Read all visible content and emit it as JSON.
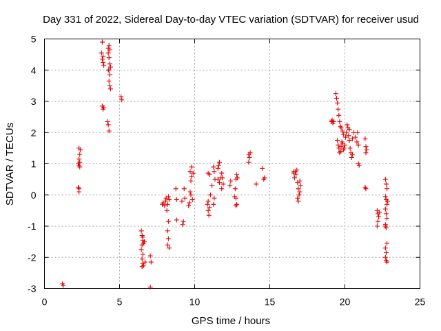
{
  "chart_data": {
    "type": "scatter",
    "title": "Day 331 of 2022, Sidereal Day-to-day VTEC variation (SDTVAR) for receiver usud",
    "xlabel": "GPS time / hours",
    "ylabel": "SDTVAR / TECUs",
    "xlim": [
      0,
      25
    ],
    "ylim": [
      -3,
      5
    ],
    "xticks": [
      "0",
      "5",
      "10",
      "15",
      "20",
      "25"
    ],
    "yticks": [
      "-3",
      "-2",
      "-1",
      "0",
      "1",
      "2",
      "3",
      "4",
      "5"
    ],
    "grid": true,
    "marker": "+",
    "series": [
      {
        "name": "SDTVAR",
        "color": "#e00000",
        "points": [
          [
            1.2,
            -2.85
          ],
          [
            1.25,
            -2.9
          ],
          [
            2.3,
            0.1
          ],
          [
            2.3,
            0.2
          ],
          [
            2.25,
            0.25
          ],
          [
            2.3,
            0.95
          ],
          [
            2.35,
            1.05
          ],
          [
            2.3,
            1.15
          ],
          [
            2.35,
            1.3
          ],
          [
            2.4,
            1.45
          ],
          [
            2.3,
            1.5
          ],
          [
            2.25,
            1.0
          ],
          [
            2.35,
            0.9
          ],
          [
            3.85,
            4.9
          ],
          [
            3.9,
            4.45
          ],
          [
            3.85,
            4.35
          ],
          [
            3.9,
            4.25
          ],
          [
            3.95,
            4.15
          ],
          [
            3.8,
            4.55
          ],
          [
            3.85,
            2.85
          ],
          [
            3.9,
            2.75
          ],
          [
            3.95,
            2.8
          ],
          [
            4.25,
            4.7
          ],
          [
            4.3,
            4.8
          ],
          [
            4.35,
            4.65
          ],
          [
            4.25,
            4.55
          ],
          [
            4.3,
            4.4
          ],
          [
            4.35,
            4.2
          ],
          [
            4.4,
            4.1
          ],
          [
            4.3,
            4.0
          ],
          [
            4.35,
            3.85
          ],
          [
            4.3,
            3.65
          ],
          [
            4.35,
            3.5
          ],
          [
            4.4,
            3.4
          ],
          [
            4.25,
            4.0
          ],
          [
            4.2,
            2.35
          ],
          [
            4.25,
            2.25
          ],
          [
            4.3,
            2.05
          ],
          [
            5.1,
            3.15
          ],
          [
            5.15,
            3.05
          ],
          [
            6.45,
            -1.15
          ],
          [
            6.5,
            -1.3
          ],
          [
            6.55,
            -1.45
          ],
          [
            6.5,
            -1.6
          ],
          [
            6.45,
            -1.75
          ],
          [
            6.55,
            -1.9
          ],
          [
            6.6,
            -1.55
          ],
          [
            6.5,
            -2.05
          ],
          [
            6.55,
            -2.2
          ],
          [
            6.5,
            -2.3
          ],
          [
            6.6,
            -2.25
          ],
          [
            6.7,
            -2.15
          ],
          [
            6.65,
            -1.5
          ],
          [
            6.55,
            -1.35
          ],
          [
            7.05,
            -1.95
          ],
          [
            7.1,
            -2.15
          ],
          [
            7.05,
            -2.95
          ],
          [
            7.85,
            -0.3
          ],
          [
            7.9,
            -0.25
          ],
          [
            8.0,
            -0.35
          ],
          [
            8.05,
            -0.2
          ],
          [
            8.1,
            -0.1
          ],
          [
            8.2,
            -0.3
          ],
          [
            8.15,
            -0.5
          ],
          [
            8.25,
            -0.85
          ],
          [
            8.2,
            -1.15
          ],
          [
            8.25,
            -1.4
          ],
          [
            8.2,
            -1.6
          ],
          [
            8.3,
            -1.7
          ],
          [
            8.25,
            -0.05
          ],
          [
            8.3,
            -0.15
          ],
          [
            8.75,
            0.2
          ],
          [
            8.8,
            -0.15
          ],
          [
            8.8,
            -0.8
          ],
          [
            9.15,
            -0.2
          ],
          [
            9.25,
            -0.85
          ],
          [
            9.2,
            -0.95
          ],
          [
            9.3,
            0.2
          ],
          [
            9.35,
            -0.1
          ],
          [
            9.6,
            -0.35
          ],
          [
            9.65,
            -0.25
          ],
          [
            9.7,
            0.1
          ],
          [
            9.75,
            0.45
          ],
          [
            9.8,
            0.6
          ],
          [
            9.7,
            0.75
          ],
          [
            9.8,
            0.9
          ],
          [
            9.75,
            0.0
          ],
          [
            9.85,
            -0.15
          ],
          [
            9.9,
            0.7
          ],
          [
            10.85,
            -0.3
          ],
          [
            10.9,
            -0.5
          ],
          [
            10.95,
            -0.65
          ],
          [
            11.0,
            -0.4
          ],
          [
            10.9,
            -0.2
          ],
          [
            10.9,
            0.7
          ],
          [
            11.0,
            0.65
          ],
          [
            11.05,
            0.0
          ],
          [
            11.25,
            0.9
          ],
          [
            11.3,
            0.75
          ],
          [
            11.35,
            0.5
          ],
          [
            11.3,
            -0.1
          ],
          [
            11.25,
            -0.3
          ],
          [
            11.15,
            0.3
          ],
          [
            11.55,
            0.85
          ],
          [
            11.6,
            0.95
          ],
          [
            11.65,
            1.05
          ],
          [
            11.55,
            0.5
          ],
          [
            11.65,
            0.4
          ],
          [
            11.75,
            0.55
          ],
          [
            11.8,
            0.7
          ],
          [
            11.85,
            0.55
          ],
          [
            11.9,
            0.35
          ],
          [
            11.8,
            0.2
          ],
          [
            12.35,
            0.3
          ],
          [
            12.4,
            0.45
          ],
          [
            12.65,
            -0.05
          ],
          [
            12.7,
            0.2
          ],
          [
            12.75,
            0.5
          ],
          [
            12.8,
            0.65
          ],
          [
            12.85,
            0.55
          ],
          [
            12.75,
            -0.1
          ],
          [
            12.8,
            -0.3
          ],
          [
            12.75,
            -0.35
          ],
          [
            13.6,
            1.05
          ],
          [
            13.65,
            1.2
          ],
          [
            13.7,
            1.35
          ],
          [
            13.6,
            1.3
          ],
          [
            14.1,
            0.35
          ],
          [
            14.5,
            0.85
          ],
          [
            14.6,
            0.5
          ],
          [
            14.65,
            0.55
          ],
          [
            16.6,
            0.7
          ],
          [
            16.65,
            0.55
          ],
          [
            16.7,
            0.75
          ],
          [
            16.8,
            0.8
          ],
          [
            16.75,
            0.65
          ],
          [
            16.6,
            0.75
          ],
          [
            16.85,
            0.4
          ],
          [
            16.9,
            0.2
          ],
          [
            16.95,
            0.0
          ],
          [
            16.85,
            -0.1
          ],
          [
            16.9,
            -0.2
          ],
          [
            17.0,
            0.1
          ],
          [
            17.05,
            0.3
          ],
          [
            17.0,
            0.45
          ],
          [
            19.1,
            2.35
          ],
          [
            19.15,
            2.4
          ],
          [
            19.2,
            2.3
          ],
          [
            19.25,
            2.35
          ],
          [
            19.4,
            3.25
          ],
          [
            19.45,
            3.1
          ],
          [
            19.5,
            2.95
          ],
          [
            19.55,
            2.75
          ],
          [
            19.6,
            2.55
          ],
          [
            19.65,
            2.35
          ],
          [
            19.7,
            2.2
          ],
          [
            19.75,
            2.15
          ],
          [
            19.85,
            2.05
          ],
          [
            19.9,
            1.95
          ],
          [
            19.5,
            1.75
          ],
          [
            19.55,
            1.6
          ],
          [
            19.6,
            1.5
          ],
          [
            19.65,
            1.35
          ],
          [
            19.7,
            1.4
          ],
          [
            19.75,
            1.55
          ],
          [
            19.8,
            1.7
          ],
          [
            19.85,
            1.65
          ],
          [
            19.9,
            1.45
          ],
          [
            19.95,
            1.5
          ],
          [
            20.0,
            1.6
          ],
          [
            20.05,
            1.85
          ],
          [
            20.1,
            2.0
          ],
          [
            20.15,
            2.25
          ],
          [
            20.2,
            2.15
          ],
          [
            20.25,
            1.9
          ],
          [
            20.3,
            1.75
          ],
          [
            20.35,
            1.5
          ],
          [
            20.4,
            1.35
          ],
          [
            20.45,
            1.2
          ],
          [
            20.5,
            1.3
          ],
          [
            20.3,
            2.1
          ],
          [
            20.5,
            1.8
          ],
          [
            20.6,
            2.0
          ],
          [
            20.7,
            1.85
          ],
          [
            20.8,
            1.7
          ],
          [
            20.85,
            2.0
          ],
          [
            20.9,
            1.6
          ],
          [
            20.95,
            0.95
          ],
          [
            20.9,
            1.0
          ],
          [
            21.35,
            1.8
          ],
          [
            21.4,
            1.55
          ],
          [
            21.45,
            1.45
          ],
          [
            21.4,
            1.35
          ],
          [
            21.35,
            0.25
          ],
          [
            21.4,
            0.2
          ],
          [
            22.15,
            -0.5
          ],
          [
            22.2,
            -0.6
          ],
          [
            22.25,
            -0.7
          ],
          [
            22.2,
            -0.85
          ],
          [
            22.15,
            -1.0
          ],
          [
            22.3,
            -0.55
          ],
          [
            22.7,
            0.5
          ],
          [
            22.75,
            0.35
          ],
          [
            22.8,
            0.2
          ],
          [
            22.7,
            -0.05
          ],
          [
            22.75,
            -0.15
          ],
          [
            22.8,
            -0.3
          ],
          [
            22.7,
            -0.45
          ],
          [
            22.75,
            -0.6
          ],
          [
            22.8,
            -0.75
          ],
          [
            22.7,
            -0.95
          ],
          [
            22.75,
            -1.05
          ],
          [
            22.8,
            -1.55
          ],
          [
            22.7,
            -1.7
          ],
          [
            22.75,
            -1.85
          ],
          [
            22.7,
            -2.0
          ],
          [
            22.75,
            -2.1
          ],
          [
            22.8,
            -2.15
          ],
          [
            22.7,
            -1.0
          ],
          [
            22.85,
            -0.2
          ]
        ]
      }
    ]
  }
}
